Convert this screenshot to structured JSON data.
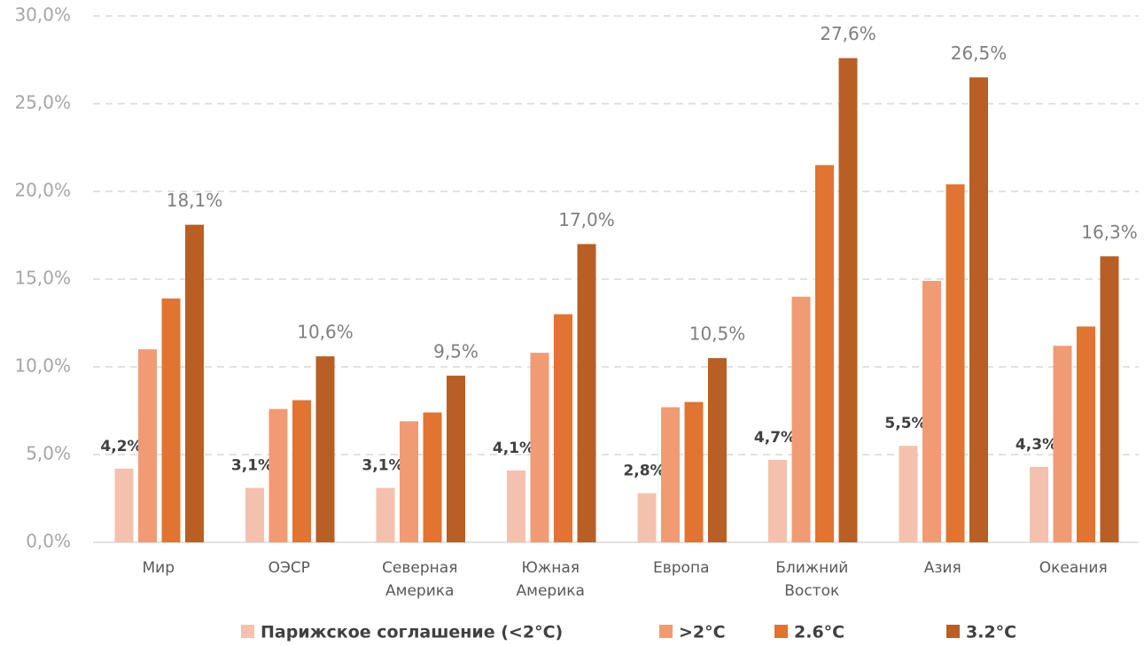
{
  "chart_data": {
    "type": "bar",
    "categories": [
      "Мир",
      "ОЭСР",
      "Северная Америка",
      "Южная Америка",
      "Европа",
      "Ближний Восток",
      "Азия",
      "Океания"
    ],
    "series": [
      {
        "name": "Парижское соглашение (<2°C)",
        "color": "#f4c1ae",
        "values": [
          4.2,
          3.1,
          3.1,
          4.1,
          2.8,
          4.7,
          5.5,
          4.3
        ],
        "value_labels": [
          "4,2%",
          "3,1%",
          "3,1%",
          "4,1%",
          "2,8%",
          "4,7%",
          "5,5%",
          "4,3%"
        ]
      },
      {
        "name": ">2°C",
        "color": "#f09b74",
        "values": [
          11.0,
          7.6,
          6.9,
          10.8,
          7.7,
          14.0,
          14.9,
          11.2
        ]
      },
      {
        "name": "2.6°C",
        "color": "#e07430",
        "values": [
          13.9,
          8.1,
          7.4,
          13.0,
          8.0,
          21.5,
          20.4,
          12.3
        ]
      },
      {
        "name": "3.2°C",
        "color": "#b85f25",
        "values": [
          18.1,
          10.6,
          9.5,
          17.0,
          10.5,
          27.6,
          26.5,
          16.3
        ],
        "value_labels": [
          "18,1%",
          "10,6%",
          "9,5%",
          "17,0%",
          "10,5%",
          "27,6%",
          "26,5%",
          "16,3%"
        ]
      }
    ],
    "ylim": [
      0,
      30
    ],
    "yticks": [
      {
        "value": 0,
        "label": "0,0%"
      },
      {
        "value": 5,
        "label": "5,0%"
      },
      {
        "value": 10,
        "label": "10,0%"
      },
      {
        "value": 15,
        "label": "15,0%"
      },
      {
        "value": 20,
        "label": "20,0%"
      },
      {
        "value": 25,
        "label": "25,0%"
      },
      {
        "value": 30,
        "label": "30,0%"
      }
    ],
    "grid": true,
    "legend": "bottom"
  }
}
